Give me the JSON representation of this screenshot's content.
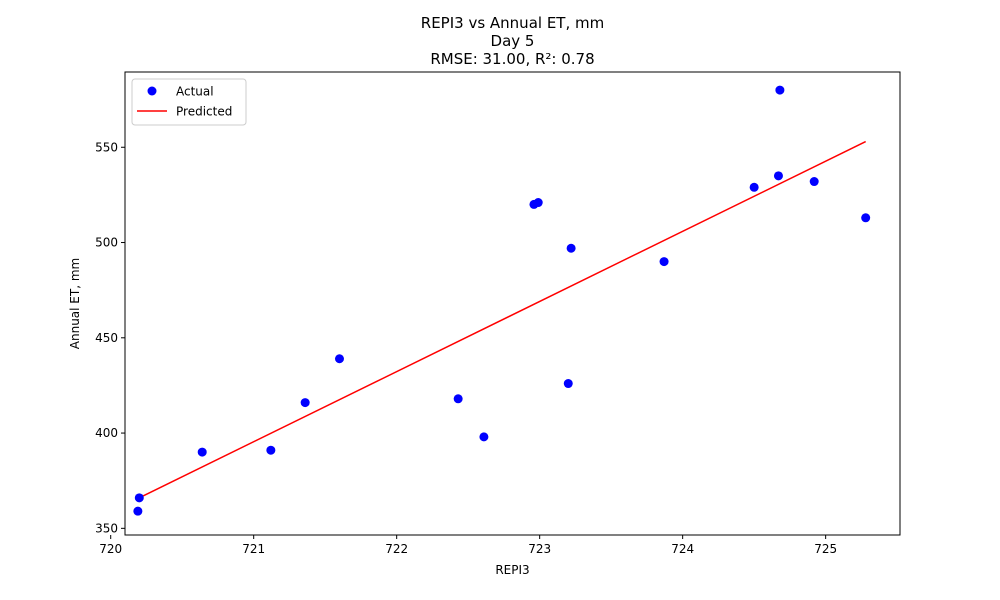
{
  "chart_data": {
    "type": "scatter",
    "title_lines": [
      "REPI3 vs Annual ET, mm",
      "Day 5",
      "RMSE: 31.00, R²: 0.78"
    ],
    "xlabel": "REPI3",
    "ylabel": "Annual ET, mm",
    "xlim": [
      720.1,
      725.52
    ],
    "ylim": [
      346.5,
      589.5
    ],
    "xticks": [
      720,
      721,
      722,
      723,
      724,
      725
    ],
    "yticks": [
      350,
      400,
      450,
      500,
      550
    ],
    "grid": false,
    "legend_position": "upper-left",
    "series": [
      {
        "name": "Actual",
        "kind": "scatter",
        "color": "#0000ff",
        "x": [
          720.2,
          720.19,
          720.64,
          721.12,
          721.36,
          721.6,
          722.43,
          722.61,
          722.96,
          722.99,
          723.2,
          723.22,
          723.87,
          724.5,
          724.67,
          724.68,
          724.92,
          725.28
        ],
        "y": [
          366,
          359,
          390,
          391,
          416,
          439,
          418,
          398,
          520,
          521,
          426,
          497,
          490,
          529,
          535,
          580,
          532,
          513
        ]
      },
      {
        "name": "Predicted",
        "kind": "line",
        "color": "#ff0000",
        "x": [
          720.2,
          725.28
        ],
        "y": [
          366,
          553
        ]
      }
    ]
  }
}
